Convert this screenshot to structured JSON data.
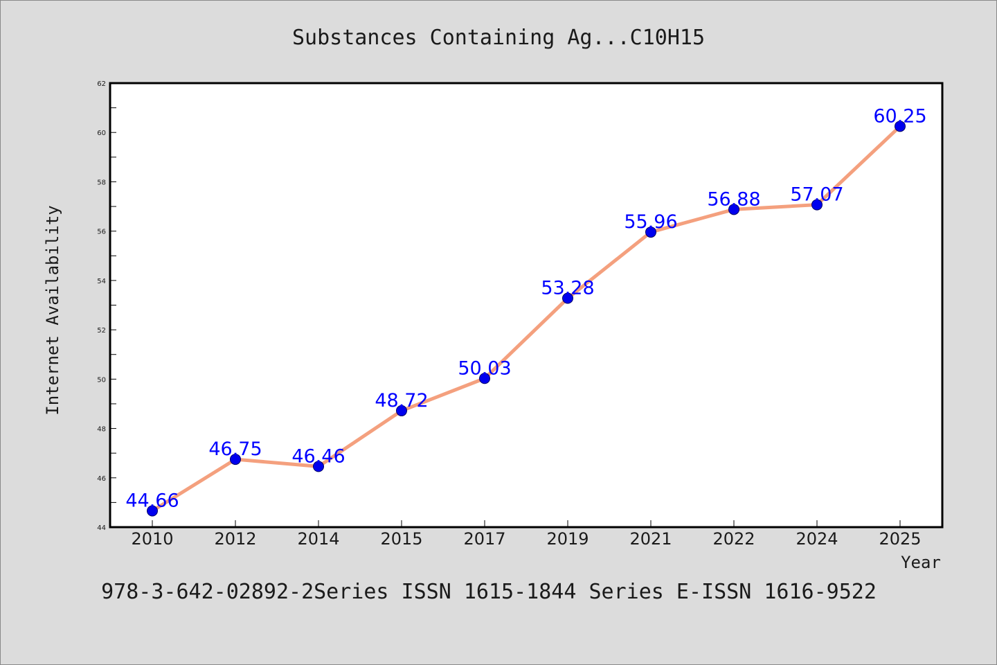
{
  "colors": {
    "background": "#dcdcdc",
    "plot_background": "#ffffff",
    "line": "#f4a07e",
    "marker": "#0000ee",
    "label": "#0000ff",
    "text": "#1a1a1a"
  },
  "chart_data": {
    "type": "line",
    "title": "Substances Containing Ag...C10H15",
    "xlabel": "Year",
    "ylabel": "Internet Availability",
    "categories": [
      "2010",
      "2012",
      "2014",
      "2015",
      "2017",
      "2019",
      "2021",
      "2022",
      "2024",
      "2025"
    ],
    "series": [
      {
        "values": [
          44.66,
          46.75,
          46.46,
          48.72,
          50.03,
          53.28,
          55.96,
          56.88,
          57.07,
          60.25
        ],
        "labels": [
          "44.66",
          "46.75",
          "46.46",
          "48.72",
          "50.03",
          "53.28",
          "55.96",
          "56.88",
          "57.07",
          "60.25"
        ]
      }
    ],
    "ylim": [
      44,
      62
    ],
    "yticks": [
      "44",
      "46",
      "48",
      "50",
      "52",
      "54",
      "56",
      "58",
      "60",
      "62"
    ],
    "grid": false,
    "legend": "none"
  },
  "footer": {
    "text": "978-3-642-02892-2Series ISSN 1615-1844 Series E-ISSN 1616-9522"
  }
}
